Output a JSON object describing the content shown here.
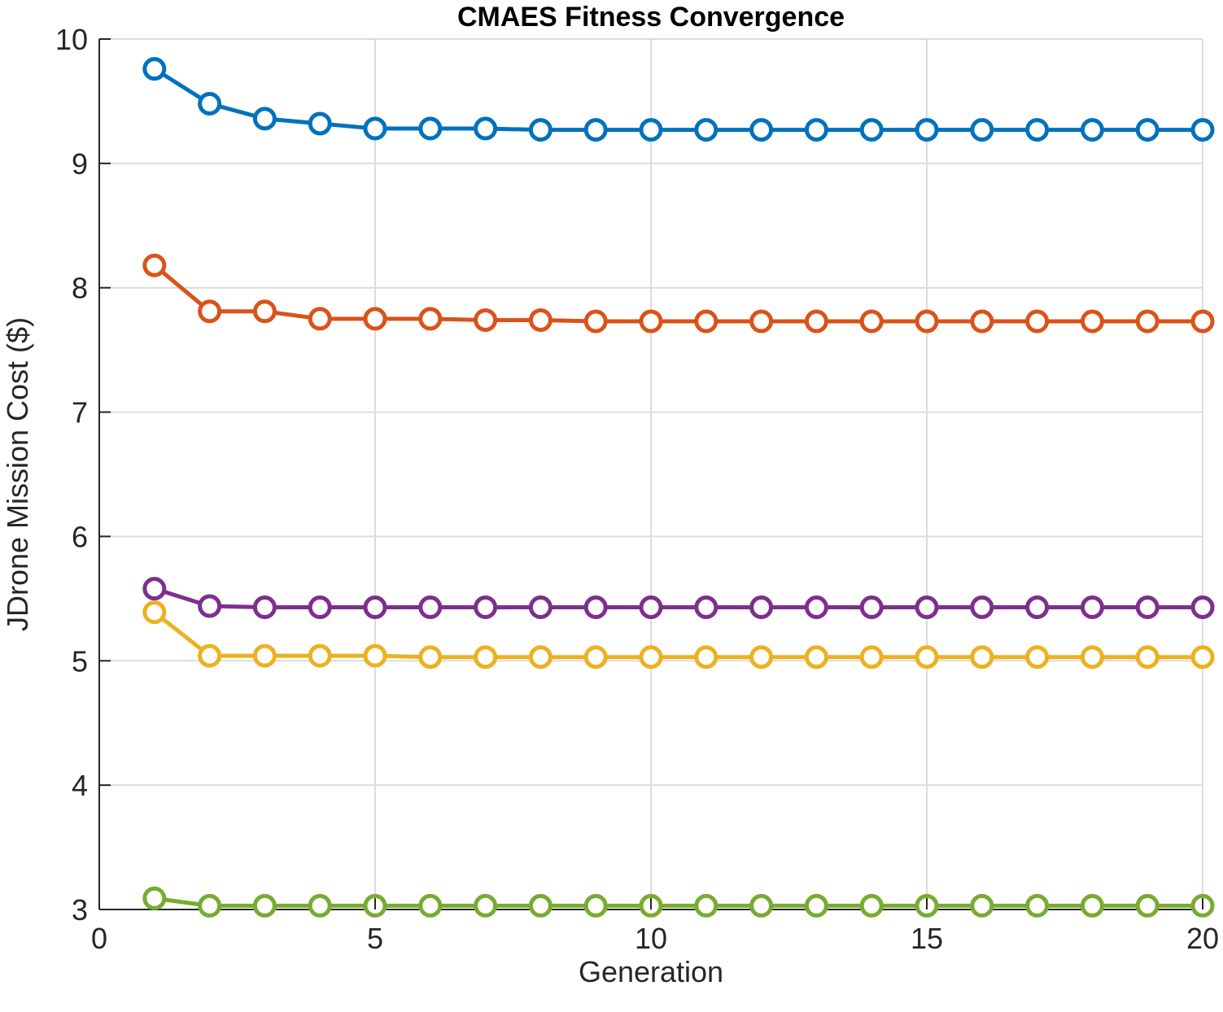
{
  "chart_data": {
    "type": "line",
    "title": "CMAES Fitness Convergence",
    "xlabel": "Generation",
    "ylabel": "JDrone Mission Cost ($)",
    "xlim": [
      0,
      20
    ],
    "ylim": [
      3,
      10
    ],
    "xticks": [
      0,
      5,
      10,
      15,
      20
    ],
    "yticks": [
      3,
      4,
      5,
      6,
      7,
      8,
      9,
      10
    ],
    "grid": true,
    "legend": "none",
    "marker": "circle",
    "x": [
      1,
      2,
      3,
      4,
      5,
      6,
      7,
      8,
      9,
      10,
      11,
      12,
      13,
      14,
      15,
      16,
      17,
      18,
      19,
      20
    ],
    "series": [
      {
        "color": "#0072BD",
        "values": [
          9.76,
          9.48,
          9.36,
          9.32,
          9.28,
          9.28,
          9.28,
          9.27,
          9.27,
          9.27,
          9.27,
          9.27,
          9.27,
          9.27,
          9.27,
          9.27,
          9.27,
          9.27,
          9.27,
          9.27
        ]
      },
      {
        "color": "#D95319",
        "values": [
          8.18,
          7.81,
          7.81,
          7.75,
          7.75,
          7.75,
          7.74,
          7.74,
          7.73,
          7.73,
          7.73,
          7.73,
          7.73,
          7.73,
          7.73,
          7.73,
          7.73,
          7.73,
          7.73,
          7.73
        ]
      },
      {
        "color": "#7E2F8E",
        "values": [
          5.58,
          5.44,
          5.43,
          5.43,
          5.43,
          5.43,
          5.43,
          5.43,
          5.43,
          5.43,
          5.43,
          5.43,
          5.43,
          5.43,
          5.43,
          5.43,
          5.43,
          5.43,
          5.43,
          5.43
        ]
      },
      {
        "color": "#EDB120",
        "values": [
          5.39,
          5.04,
          5.04,
          5.04,
          5.04,
          5.03,
          5.03,
          5.03,
          5.03,
          5.03,
          5.03,
          5.03,
          5.03,
          5.03,
          5.03,
          5.03,
          5.03,
          5.03,
          5.03,
          5.03
        ]
      },
      {
        "color": "#77AC30",
        "values": [
          3.09,
          3.03,
          3.03,
          3.03,
          3.03,
          3.03,
          3.03,
          3.03,
          3.03,
          3.03,
          3.03,
          3.03,
          3.03,
          3.03,
          3.03,
          3.03,
          3.03,
          3.03,
          3.03,
          3.03
        ]
      }
    ]
  }
}
